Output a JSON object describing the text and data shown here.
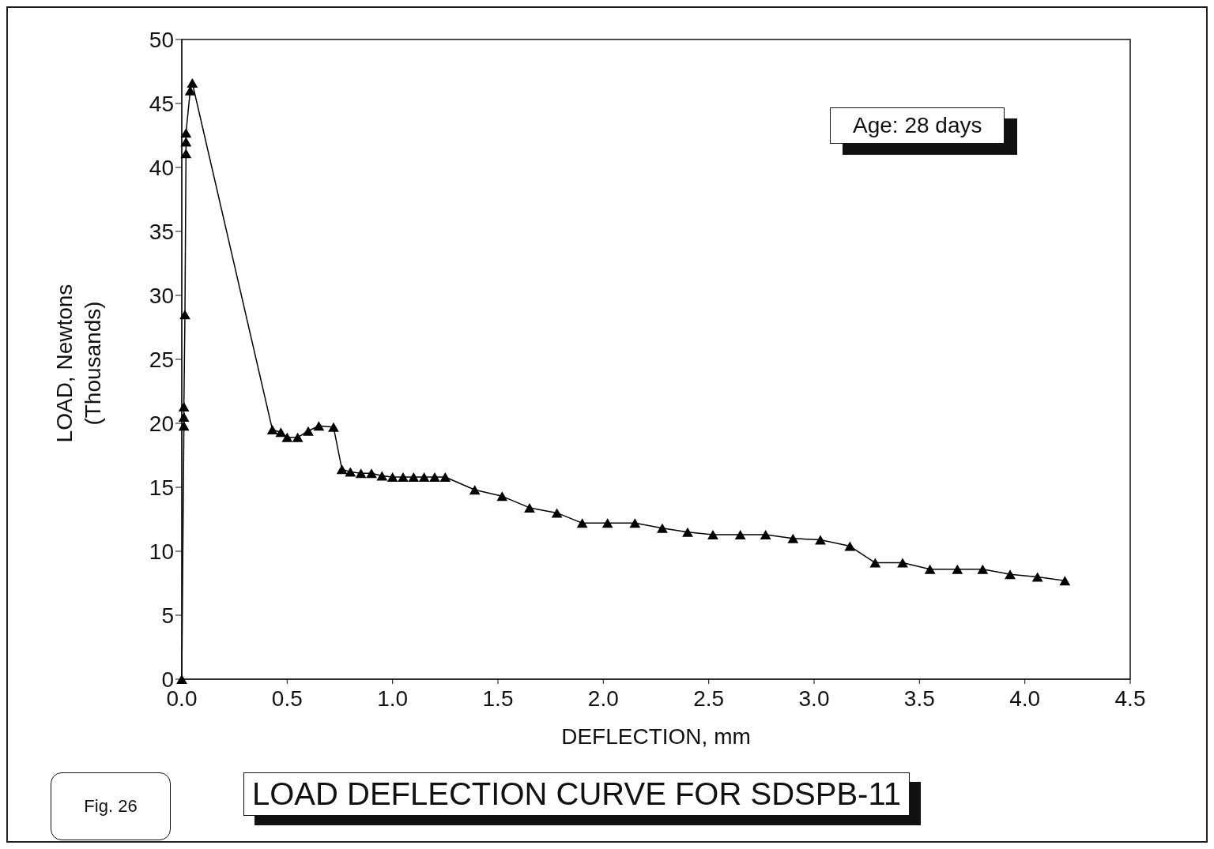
{
  "chart_data": {
    "type": "line",
    "title": "LOAD DEFLECTION CURVE FOR SDSPB-11",
    "xlabel": "DEFLECTION, mm",
    "ylabel": "LOAD, Newtons\n(Thousands)",
    "annotations": [
      "Age: 28 days",
      "Fig. 26"
    ],
    "x": [
      0,
      0.01,
      0.01,
      0.01,
      0.015,
      0.02,
      0.02,
      0.02,
      0.04,
      0.05,
      0.43,
      0.47,
      0.5,
      0.55,
      0.6,
      0.65,
      0.72,
      0.76,
      0.8,
      0.85,
      0.9,
      0.95,
      1.0,
      1.05,
      1.1,
      1.15,
      1.2,
      1.25,
      1.39,
      1.52,
      1.65,
      1.78,
      1.9,
      2.02,
      2.15,
      2.28,
      2.4,
      2.52,
      2.65,
      2.77,
      2.9,
      3.03,
      3.17,
      3.29,
      3.42,
      3.55,
      3.68,
      3.8,
      3.93,
      4.06,
      4.19
    ],
    "series": [
      {
        "color": "#000000",
        "values": [
          0,
          19.8,
          20.5,
          21.3,
          28.5,
          41.1,
          42,
          42.7,
          46,
          46.6,
          19.5,
          19.3,
          18.9,
          18.9,
          19.4,
          19.8,
          19.7,
          16.4,
          16.2,
          16.1,
          16.1,
          15.9,
          15.8,
          15.8,
          15.8,
          15.8,
          15.8,
          15.8,
          14.8,
          14.3,
          13.4,
          13.0,
          12.2,
          12.2,
          12.2,
          11.8,
          11.5,
          11.3,
          11.3,
          11.3,
          11.0,
          10.9,
          10.4,
          9.1,
          9.1,
          8.6,
          8.6,
          8.6,
          8.2,
          8.0,
          7.7
        ]
      }
    ],
    "xlim": [
      0,
      4.5
    ],
    "xticks": [
      {
        "value": 0,
        "label": "0.0"
      },
      {
        "value": 0.5,
        "label": "0.5"
      },
      {
        "value": 1,
        "label": "1.0"
      },
      {
        "value": 1.5,
        "label": "1.5"
      },
      {
        "value": 2,
        "label": "2.0"
      },
      {
        "value": 2.5,
        "label": "2.5"
      },
      {
        "value": 3,
        "label": "3.0"
      },
      {
        "value": 3.5,
        "label": "3.5"
      },
      {
        "value": 4,
        "label": "4.0"
      },
      {
        "value": 4.5,
        "label": "4.5"
      }
    ],
    "ylim": [
      0,
      50
    ],
    "yticks": [
      0,
      5,
      10,
      15,
      20,
      25,
      30,
      35,
      40,
      45,
      50
    ],
    "marker": "triangle",
    "line_style": "solid",
    "grid": false,
    "legend": false
  }
}
